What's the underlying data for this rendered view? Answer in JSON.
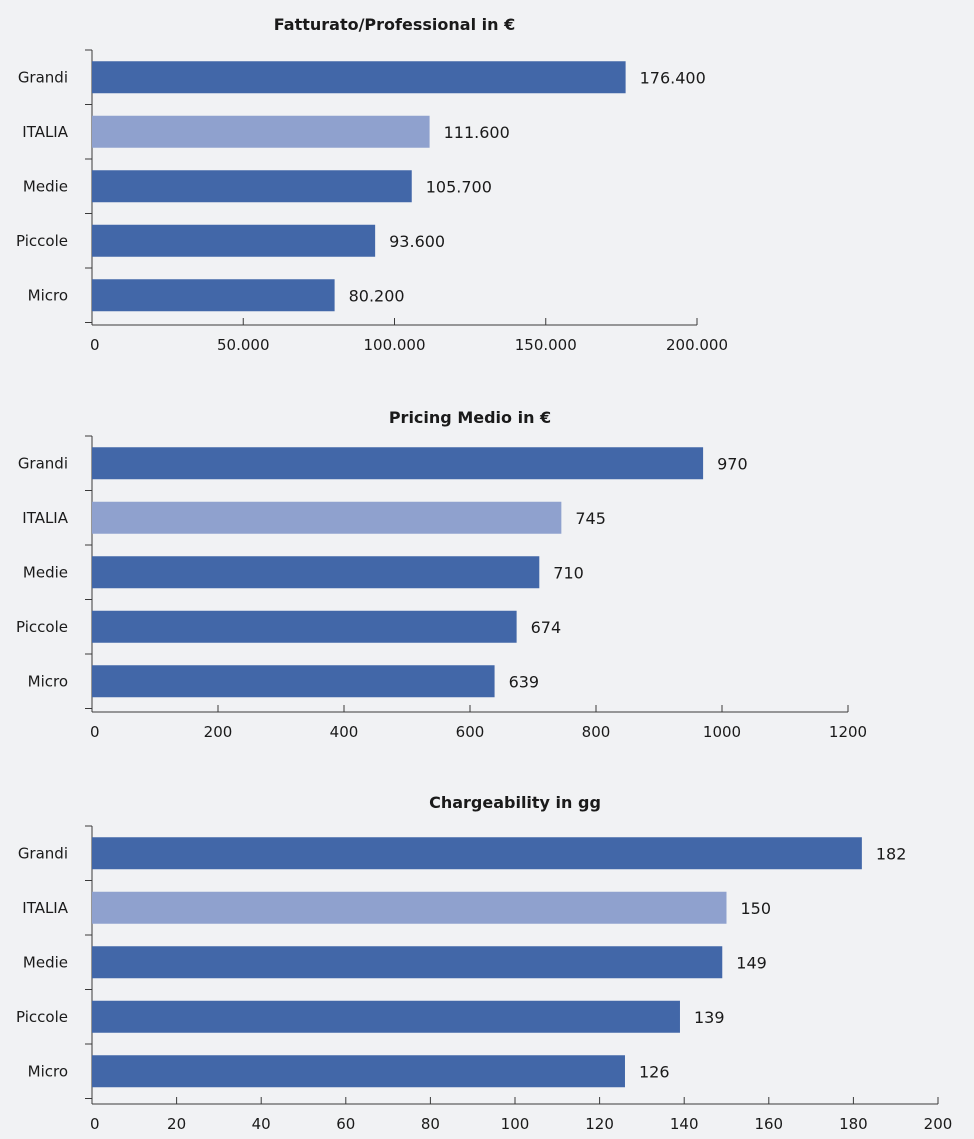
{
  "chart_data": [
    {
      "type": "bar",
      "orientation": "horizontal",
      "title": "Fatturato/Professional in €",
      "categories": [
        "Grandi",
        "ITALIA",
        "Medie",
        "Piccole",
        "Micro"
      ],
      "values": [
        176400,
        111600,
        105700,
        93600,
        80200
      ],
      "value_labels": [
        "176.400",
        "111.600",
        "105.700",
        "93.600",
        "80.200"
      ],
      "highlight_category": "ITALIA",
      "xlim": [
        0,
        200000
      ],
      "xticks": [
        0,
        50000,
        100000,
        150000,
        200000
      ],
      "xtick_labels": [
        "0",
        "50.000",
        "100.000",
        "150.000",
        "200.000"
      ],
      "grid": false,
      "legend": "none"
    },
    {
      "type": "bar",
      "orientation": "horizontal",
      "title": "Pricing Medio in €",
      "categories": [
        "Grandi",
        "ITALIA",
        "Medie",
        "Piccole",
        "Micro"
      ],
      "values": [
        970,
        745,
        710,
        674,
        639
      ],
      "value_labels": [
        "970",
        "745",
        "710",
        "674",
        "639"
      ],
      "highlight_category": "ITALIA",
      "xlim": [
        0,
        1200
      ],
      "xticks": [
        0,
        200,
        400,
        600,
        800,
        1000,
        1200
      ],
      "xtick_labels": [
        "0",
        "200",
        "400",
        "600",
        "800",
        "1000",
        "1200"
      ],
      "grid": false,
      "legend": "none"
    },
    {
      "type": "bar",
      "orientation": "horizontal",
      "title": "Chargeability in gg",
      "categories": [
        "Grandi",
        "ITALIA",
        "Medie",
        "Piccole",
        "Micro"
      ],
      "values": [
        182,
        150,
        149,
        139,
        126
      ],
      "value_labels": [
        "182",
        "150",
        "149",
        "139",
        "126"
      ],
      "highlight_category": "ITALIA",
      "xlim": [
        0,
        200
      ],
      "xticks": [
        0,
        20,
        40,
        60,
        80,
        100,
        120,
        140,
        160,
        180,
        200
      ],
      "xtick_labels": [
        "0",
        "20",
        "40",
        "60",
        "80",
        "100",
        "120",
        "140",
        "160",
        "180",
        "200"
      ],
      "grid": false,
      "legend": "none"
    }
  ],
  "colors": {
    "bar": "#4267a8",
    "highlight_bar": "#8fa1ce",
    "background": "#f1f2f4",
    "axis": "#3a3a3a",
    "text": "#1a1a1a"
  }
}
